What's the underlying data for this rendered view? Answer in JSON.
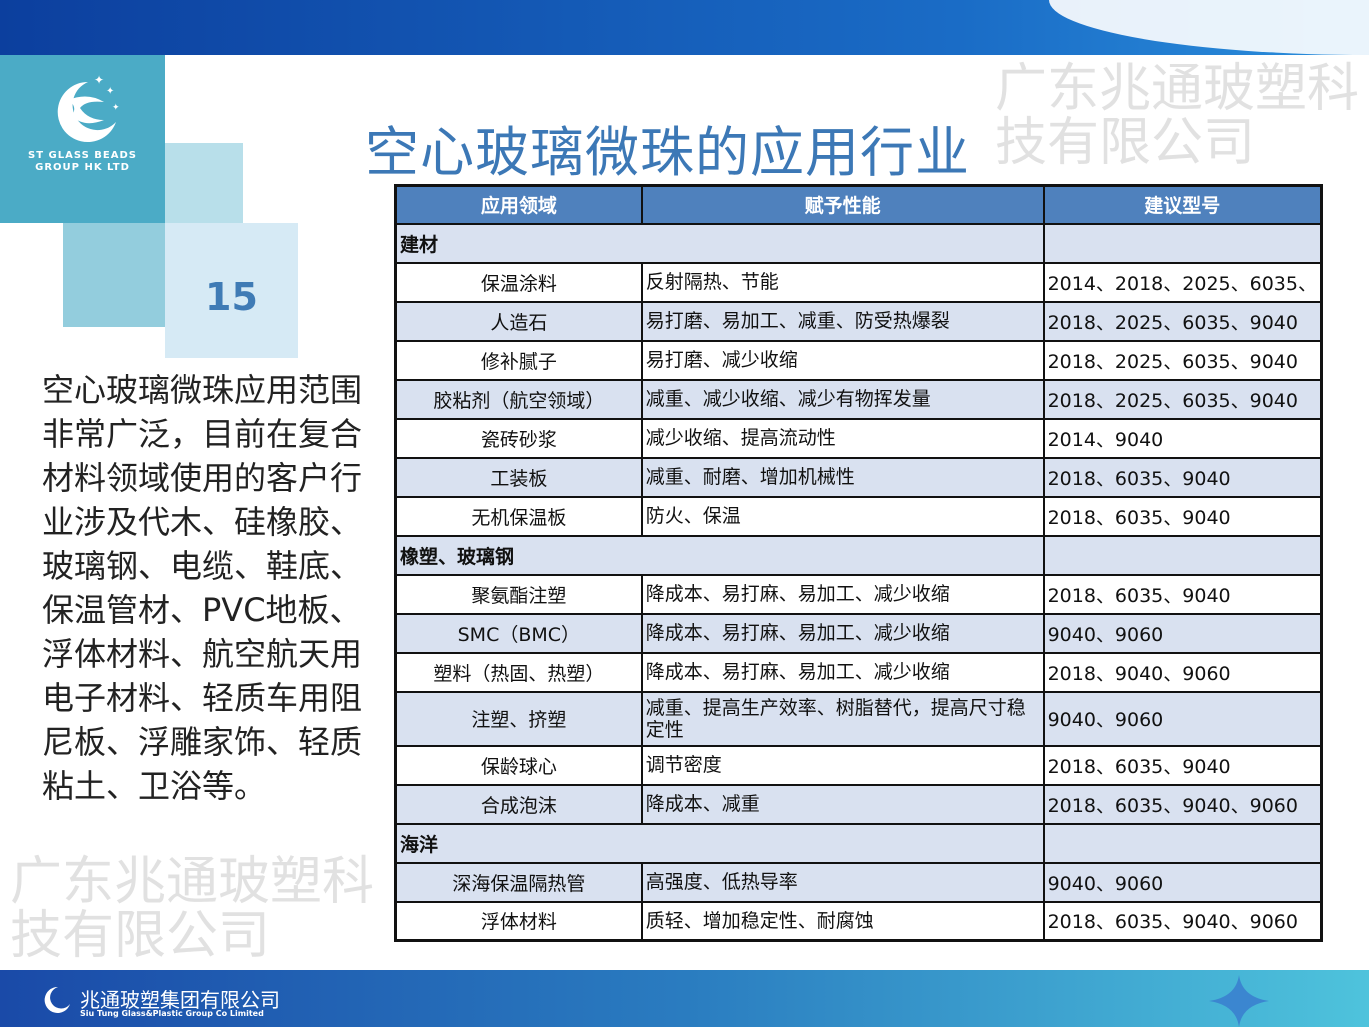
{
  "logo": {
    "line1": "ST GLASS BEADS",
    "line2": "GROUP HK LTD"
  },
  "page_number": "15",
  "title": "空心玻璃微珠的应用行业",
  "description": "空心玻璃微珠应用范围非常广泛，目前在复合材料领域使用的客户行业涉及代木、硅橡胶、玻璃钢、电缆、鞋底、保温管材、PVC地板、浮体材料、航空航天用电子材料、轻质车用阻尼板、浮雕家饰、轻质粘土、卫浴等。",
  "watermark": "广东兆通玻塑科技有限公司",
  "table": {
    "headers": [
      "应用领域",
      "赋予性能",
      "建议型号"
    ],
    "rows": [
      {
        "category": "建材"
      },
      {
        "field": "保温涂料",
        "performance": "反射隔热、节能",
        "models": "2014、2018、2025、6035、"
      },
      {
        "field": "人造石",
        "performance": "易打磨、易加工、减重、防受热爆裂",
        "models": "2018、2025、6035、9040"
      },
      {
        "field": "修补腻子",
        "performance": "易打磨、减少收缩",
        "models": "2018、2025、6035、9040"
      },
      {
        "field": "胶粘剂（航空领域）",
        "performance": "减重、减少收缩、减少有物挥发量",
        "models": "2018、2025、6035、9040"
      },
      {
        "field": "瓷砖砂浆",
        "performance": "减少收缩、提高流动性",
        "models": "2014、9040"
      },
      {
        "field": "工装板",
        "performance": "减重、耐磨、增加机械性",
        "models": "2018、6035、9040"
      },
      {
        "field": "无机保温板",
        "performance": "防火、保温",
        "models": "2018、6035、9040"
      },
      {
        "category": "橡塑、玻璃钢"
      },
      {
        "field": "聚氨酯注塑",
        "performance": "降成本、易打麻、易加工、减少收缩",
        "models": "2018、6035、9040"
      },
      {
        "field": "SMC（BMC）",
        "performance": "降成本、易打麻、易加工、减少收缩",
        "models": "9040、9060"
      },
      {
        "field": "塑料（热固、热塑）",
        "performance": "降成本、易打麻、易加工、减少收缩",
        "models": "2018、9040、9060"
      },
      {
        "field": "注塑、挤塑",
        "performance": "减重、提高生产效率、树脂替代，提高尺寸稳定性",
        "models": "9040、9060"
      },
      {
        "field": "保龄球心",
        "performance": "调节密度",
        "models": "2018、6035、9040"
      },
      {
        "field": "合成泡沫",
        "performance": "降成本、减重",
        "models": "2018、6035、9040、9060"
      },
      {
        "category": "海洋"
      },
      {
        "field": "深海保温隔热管",
        "performance": "高强度、低热导率",
        "models": "9040、9060"
      },
      {
        "field": "浮体材料",
        "performance": "质轻、增加稳定性、耐腐蚀",
        "models": "2018、6035、9040、9060"
      }
    ]
  },
  "footer": {
    "company_cn": "兆通玻塑集团有限公司",
    "company_en": "Siu Tung Glass&Plastic Group Co Limited"
  },
  "colors": {
    "header_blue": "#4f81bd",
    "title_blue": "#3c78b6",
    "row_alt": "#d9e1f0"
  }
}
